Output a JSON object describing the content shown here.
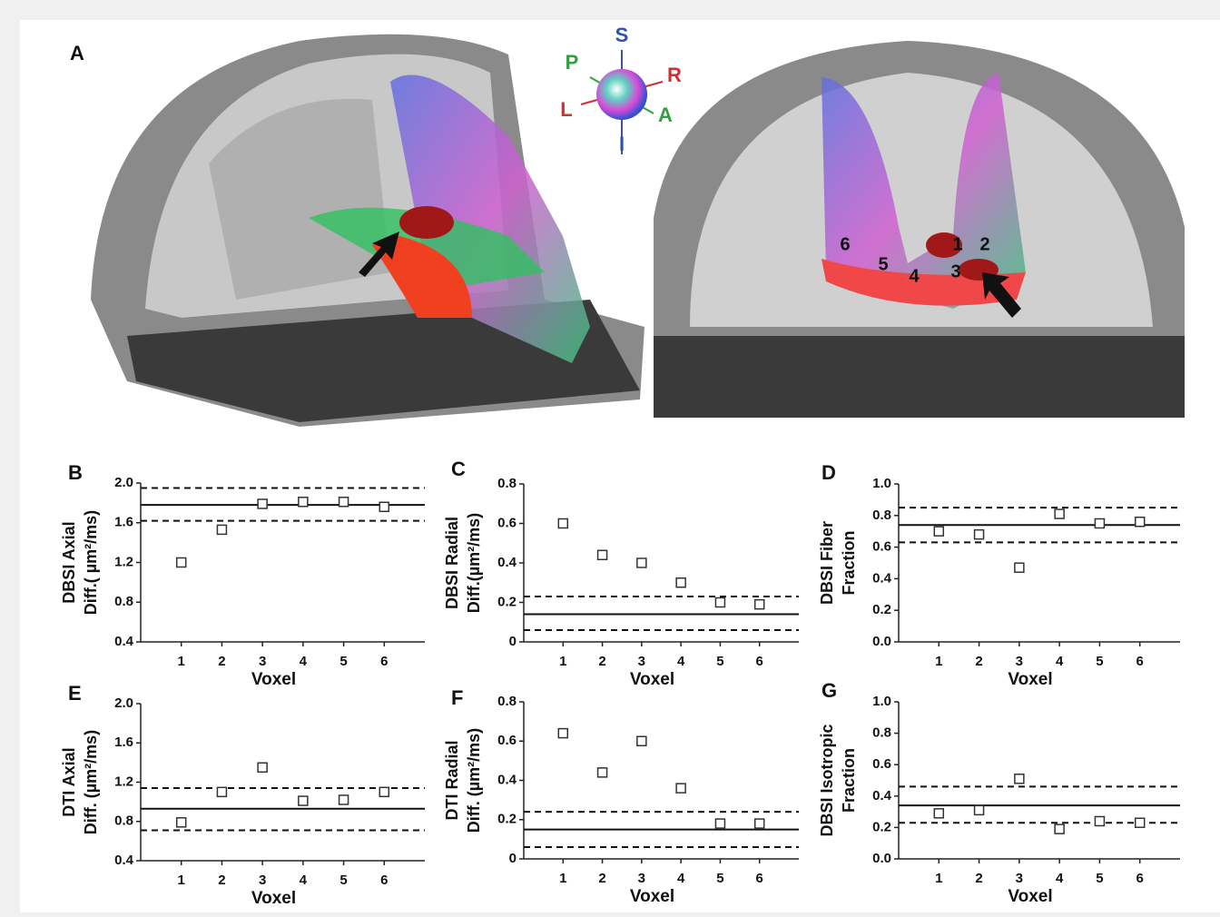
{
  "panel_a": {
    "label": "A",
    "orientation": [
      "S",
      "P",
      "R",
      "L",
      "A",
      "I"
    ],
    "voxel_numbers": [
      "1",
      "2",
      "3",
      "4",
      "5",
      "6"
    ]
  },
  "chart_data": [
    {
      "type": "scatter",
      "panel": "B",
      "ylabel": [
        "DBSI Axial",
        "Diff.( µm²/ms)"
      ],
      "xlabel": "Voxel",
      "x": [
        1,
        2,
        3,
        4,
        5,
        6
      ],
      "values": [
        1.2,
        1.53,
        1.79,
        1.81,
        1.81,
        1.76
      ],
      "xlim": [
        0,
        7
      ],
      "xticks": [
        1,
        2,
        3,
        4,
        5,
        6
      ],
      "ylim": [
        0.4,
        2.0
      ],
      "yticks": [
        0.4,
        0.8,
        1.2,
        1.6,
        {
          "value": 2,
          "label": "2.0"
        }
      ],
      "hlines": [
        {
          "value": 1.95,
          "style": "dashed"
        },
        {
          "value": 1.78,
          "style": "solid"
        },
        {
          "value": 1.62,
          "style": "dashed"
        }
      ],
      "color": "#333333"
    },
    {
      "type": "scatter",
      "panel": "C",
      "ylabel": [
        "DBSI Radial",
        "Diff.(µm²/ms)"
      ],
      "xlabel": "Voxel",
      "x": [
        1,
        2,
        3,
        4,
        5,
        6
      ],
      "values": [
        0.6,
        0.44,
        0.4,
        0.3,
        0.2,
        0.19
      ],
      "xlim": [
        0,
        7
      ],
      "xticks": [
        1,
        2,
        3,
        4,
        5,
        6
      ],
      "ylim": [
        0,
        0.8
      ],
      "yticks": [
        0,
        0.2,
        0.4,
        0.6,
        0.8
      ],
      "hlines": [
        {
          "value": 0.23,
          "style": "dashed"
        },
        {
          "value": 0.14,
          "style": "solid"
        },
        {
          "value": 0.06,
          "style": "dashed"
        }
      ],
      "color": "#333333"
    },
    {
      "type": "scatter",
      "panel": "D",
      "ylabel": [
        "DBSI Fiber",
        "Fraction"
      ],
      "xlabel": "Voxel",
      "x": [
        1,
        2,
        3,
        4,
        5,
        6
      ],
      "values": [
        0.7,
        0.68,
        0.47,
        0.81,
        0.75,
        0.76
      ],
      "xlim": [
        0,
        7
      ],
      "xticks": [
        1,
        2,
        3,
        4,
        5,
        6
      ],
      "ylim": [
        0,
        1
      ],
      "yticks": [
        {
          "value": 0,
          "label": "0.0"
        },
        0.2,
        0.4,
        0.6,
        0.8,
        {
          "value": 1,
          "label": "1.0"
        }
      ],
      "hlines": [
        {
          "value": 0.85,
          "style": "dashed"
        },
        {
          "value": 0.74,
          "style": "solid"
        },
        {
          "value": 0.63,
          "style": "dashed"
        }
      ],
      "color": "#333333"
    },
    {
      "type": "scatter",
      "panel": "E",
      "ylabel": [
        "DTI Axial",
        "Diff. (µm²/ms)"
      ],
      "xlabel": "Voxel",
      "x": [
        1,
        2,
        3,
        4,
        5,
        6
      ],
      "values": [
        0.79,
        1.1,
        1.35,
        1.01,
        1.02,
        1.1
      ],
      "xlim": [
        0,
        7
      ],
      "xticks": [
        1,
        2,
        3,
        4,
        5,
        6
      ],
      "ylim": [
        0.4,
        2.0
      ],
      "yticks": [
        0.4,
        0.8,
        1.2,
        1.6,
        {
          "value": 2,
          "label": "2.0"
        }
      ],
      "hlines": [
        {
          "value": 1.14,
          "style": "dashed"
        },
        {
          "value": 0.93,
          "style": "solid"
        },
        {
          "value": 0.71,
          "style": "dashed"
        }
      ],
      "color": "#333333"
    },
    {
      "type": "scatter",
      "panel": "F",
      "ylabel": [
        "DTI Radial",
        "Diff. (µm²/ms)"
      ],
      "xlabel": "Voxel",
      "x": [
        1,
        2,
        3,
        4,
        5,
        6
      ],
      "values": [
        0.64,
        0.44,
        0.6,
        0.36,
        0.18,
        0.18
      ],
      "xlim": [
        0,
        7
      ],
      "xticks": [
        1,
        2,
        3,
        4,
        5,
        6
      ],
      "ylim": [
        0,
        0.8
      ],
      "yticks": [
        0,
        0.2,
        0.4,
        0.6,
        0.8
      ],
      "hlines": [
        {
          "value": 0.24,
          "style": "dashed"
        },
        {
          "value": 0.15,
          "style": "solid"
        },
        {
          "value": 0.06,
          "style": "dashed"
        }
      ],
      "color": "#333333"
    },
    {
      "type": "scatter",
      "panel": "G",
      "ylabel": [
        "DBSI Isotropic",
        "Fraction"
      ],
      "xlabel": "Voxel",
      "x": [
        1,
        2,
        3,
        4,
        5,
        6
      ],
      "values": [
        0.29,
        0.31,
        0.51,
        0.19,
        0.24,
        0.23
      ],
      "xlim": [
        0,
        7
      ],
      "xticks": [
        1,
        2,
        3,
        4,
        5,
        6
      ],
      "ylim": [
        0,
        1
      ],
      "yticks": [
        {
          "value": 0,
          "label": "0.0"
        },
        0.2,
        0.4,
        0.6,
        0.8,
        {
          "value": 1,
          "label": "1.0"
        }
      ],
      "hlines": [
        {
          "value": 0.46,
          "style": "dashed"
        },
        {
          "value": 0.34,
          "style": "solid"
        },
        {
          "value": 0.23,
          "style": "dashed"
        }
      ],
      "color": "#333333"
    }
  ]
}
